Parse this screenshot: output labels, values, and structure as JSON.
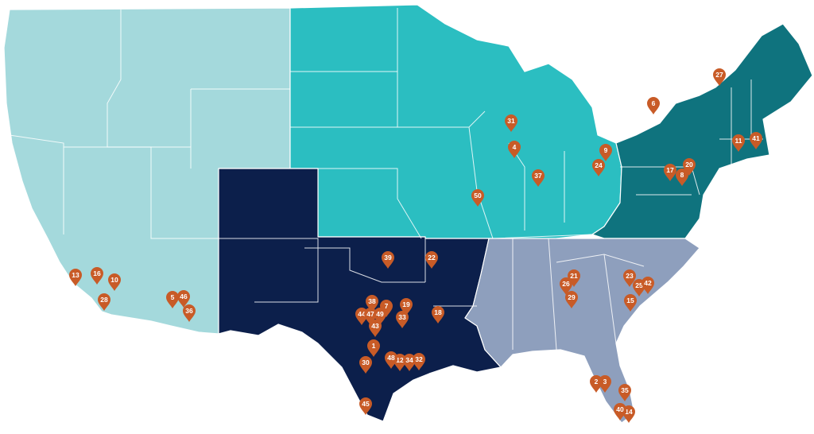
{
  "regions": [
    {
      "id": "west",
      "color": "#a4d9dc"
    },
    {
      "id": "midwest",
      "color": "#2bbec1"
    },
    {
      "id": "northeast",
      "color": "#0f737e"
    },
    {
      "id": "south-central",
      "color": "#0c1f4b"
    },
    {
      "id": "southeast",
      "color": "#8e9fbd"
    }
  ],
  "pin_color": "#c85b27",
  "pins": [
    {
      "label": "1"
    },
    {
      "label": "2"
    },
    {
      "label": "3"
    },
    {
      "label": "4"
    },
    {
      "label": "5"
    },
    {
      "label": "6"
    },
    {
      "label": "7"
    },
    {
      "label": "8"
    },
    {
      "label": "9"
    },
    {
      "label": "10"
    },
    {
      "label": "11"
    },
    {
      "label": "12"
    },
    {
      "label": "13"
    },
    {
      "label": "14"
    },
    {
      "label": "15"
    },
    {
      "label": "16"
    },
    {
      "label": "17"
    },
    {
      "label": "18"
    },
    {
      "label": "19"
    },
    {
      "label": "20"
    },
    {
      "label": "21"
    },
    {
      "label": "22"
    },
    {
      "label": "23"
    },
    {
      "label": "24"
    },
    {
      "label": "25"
    },
    {
      "label": "26"
    },
    {
      "label": "27"
    },
    {
      "label": "28"
    },
    {
      "label": "29"
    },
    {
      "label": "30"
    },
    {
      "label": "31"
    },
    {
      "label": "32"
    },
    {
      "label": "33"
    },
    {
      "label": "34"
    },
    {
      "label": "35"
    },
    {
      "label": "36"
    },
    {
      "label": "37"
    },
    {
      "label": "38"
    },
    {
      "label": "39"
    },
    {
      "label": "40"
    },
    {
      "label": "41"
    },
    {
      "label": "42"
    },
    {
      "label": "43"
    },
    {
      "label": "44"
    },
    {
      "label": "45"
    },
    {
      "label": "46"
    },
    {
      "label": "47"
    },
    {
      "label": "48"
    },
    {
      "label": "49"
    },
    {
      "label": "50"
    }
  ]
}
